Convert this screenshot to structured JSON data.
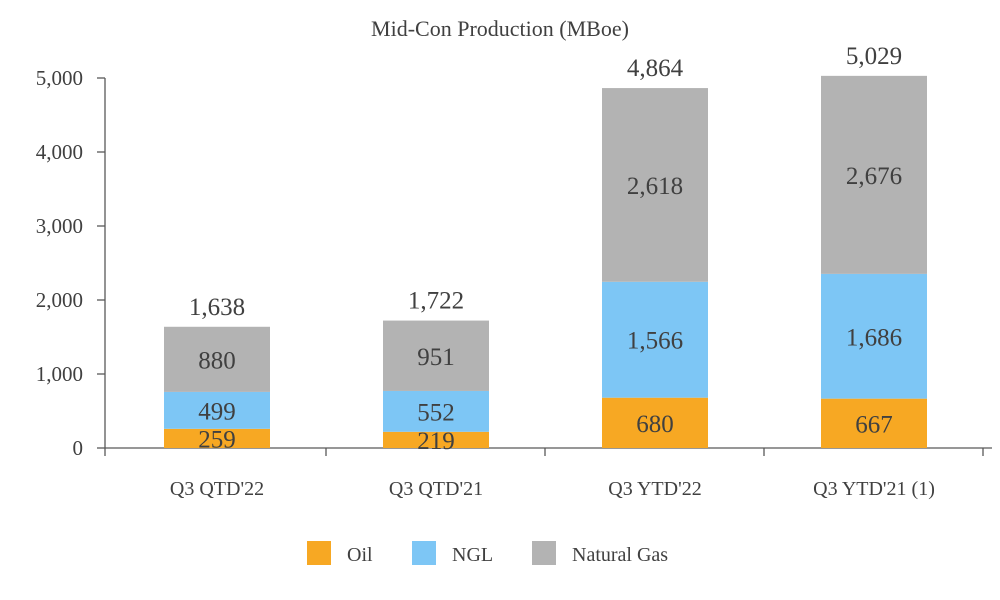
{
  "chart_data": {
    "type": "bar",
    "stacked": true,
    "title": "Mid-Con Production (MBoe)",
    "xlabel": "",
    "ylabel": "",
    "ylim": [
      0,
      5000
    ],
    "yticks": [
      0,
      1000,
      2000,
      3000,
      4000,
      5000
    ],
    "ytick_labels": [
      "0",
      "1,000",
      "2,000",
      "3,000",
      "4,000",
      "5,000"
    ],
    "grid": false,
    "legend_position": "bottom",
    "categories": [
      "Q3 QTD'22",
      "Q3 QTD'21",
      "Q3 YTD'22",
      "Q3 YTD'21 (1)"
    ],
    "series": [
      {
        "name": "Oil",
        "color": "#F7A823",
        "values": [
          259,
          219,
          680,
          667
        ],
        "labels": [
          "259",
          "219",
          "680",
          "667"
        ]
      },
      {
        "name": "NGL",
        "color": "#7DC6F5",
        "values": [
          499,
          552,
          1566,
          1686
        ],
        "labels": [
          "499",
          "552",
          "1,566",
          "1,686"
        ]
      },
      {
        "name": "Natural Gas",
        "color": "#B3B3B3",
        "values": [
          880,
          951,
          2618,
          2676
        ],
        "labels": [
          "880",
          "951",
          "2,618",
          "2,676"
        ]
      }
    ],
    "totals": [
      1638,
      1722,
      4864,
      5029
    ],
    "total_labels": [
      "1,638",
      "1,722",
      "4,864",
      "5,029"
    ]
  }
}
